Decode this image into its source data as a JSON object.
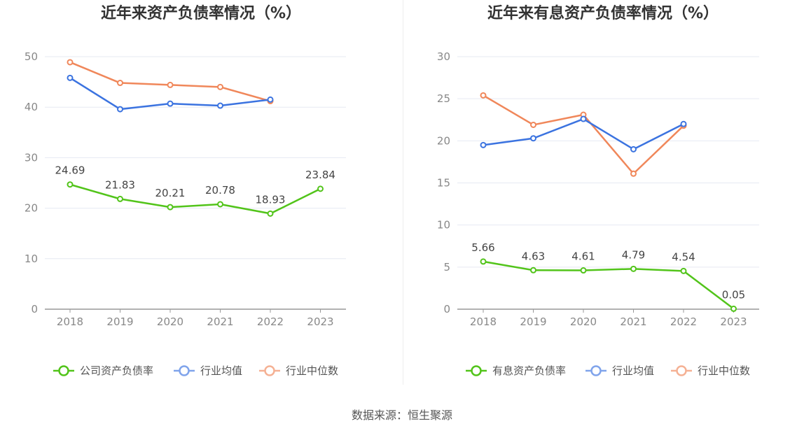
{
  "chart_data": [
    {
      "type": "line",
      "title": "近年来资产负债率情况（%）",
      "categories": [
        "2018",
        "2019",
        "2020",
        "2021",
        "2022",
        "2023"
      ],
      "ylim": [
        0,
        50
      ],
      "yticks": [
        0,
        10,
        20,
        30,
        40,
        50
      ],
      "grid": true,
      "legend_position": "bottom",
      "series": [
        {
          "name": "公司资产负债率",
          "color": "#52c41a",
          "show_labels": true,
          "values": [
            24.69,
            21.83,
            20.21,
            20.78,
            18.93,
            23.84
          ]
        },
        {
          "name": "行业均值",
          "color": "#3b73e0",
          "show_labels": false,
          "values": [
            45.8,
            39.6,
            40.7,
            40.3,
            41.5,
            null
          ]
        },
        {
          "name": "行业中位数",
          "color": "#f0875a",
          "show_labels": false,
          "values": [
            48.9,
            44.8,
            44.4,
            44.0,
            41.2,
            null
          ]
        }
      ]
    },
    {
      "type": "line",
      "title": "近年来有息资产负债率情况（%）",
      "categories": [
        "2018",
        "2019",
        "2020",
        "2021",
        "2022",
        "2023"
      ],
      "ylim": [
        0,
        30
      ],
      "yticks": [
        0,
        5,
        10,
        15,
        20,
        25,
        30
      ],
      "grid": true,
      "legend_position": "bottom",
      "series": [
        {
          "name": "有息资产负债率",
          "color": "#52c41a",
          "show_labels": true,
          "values": [
            5.66,
            4.63,
            4.61,
            4.79,
            4.54,
            0.05
          ]
        },
        {
          "name": "行业均值",
          "color": "#3b73e0",
          "show_labels": false,
          "values": [
            19.5,
            20.3,
            22.6,
            19.0,
            22.0,
            null
          ]
        },
        {
          "name": "行业中位数",
          "color": "#f0875a",
          "show_labels": false,
          "values": [
            25.4,
            21.9,
            23.1,
            16.1,
            21.8,
            null
          ]
        }
      ]
    }
  ],
  "source": "数据来源：恒生聚源"
}
